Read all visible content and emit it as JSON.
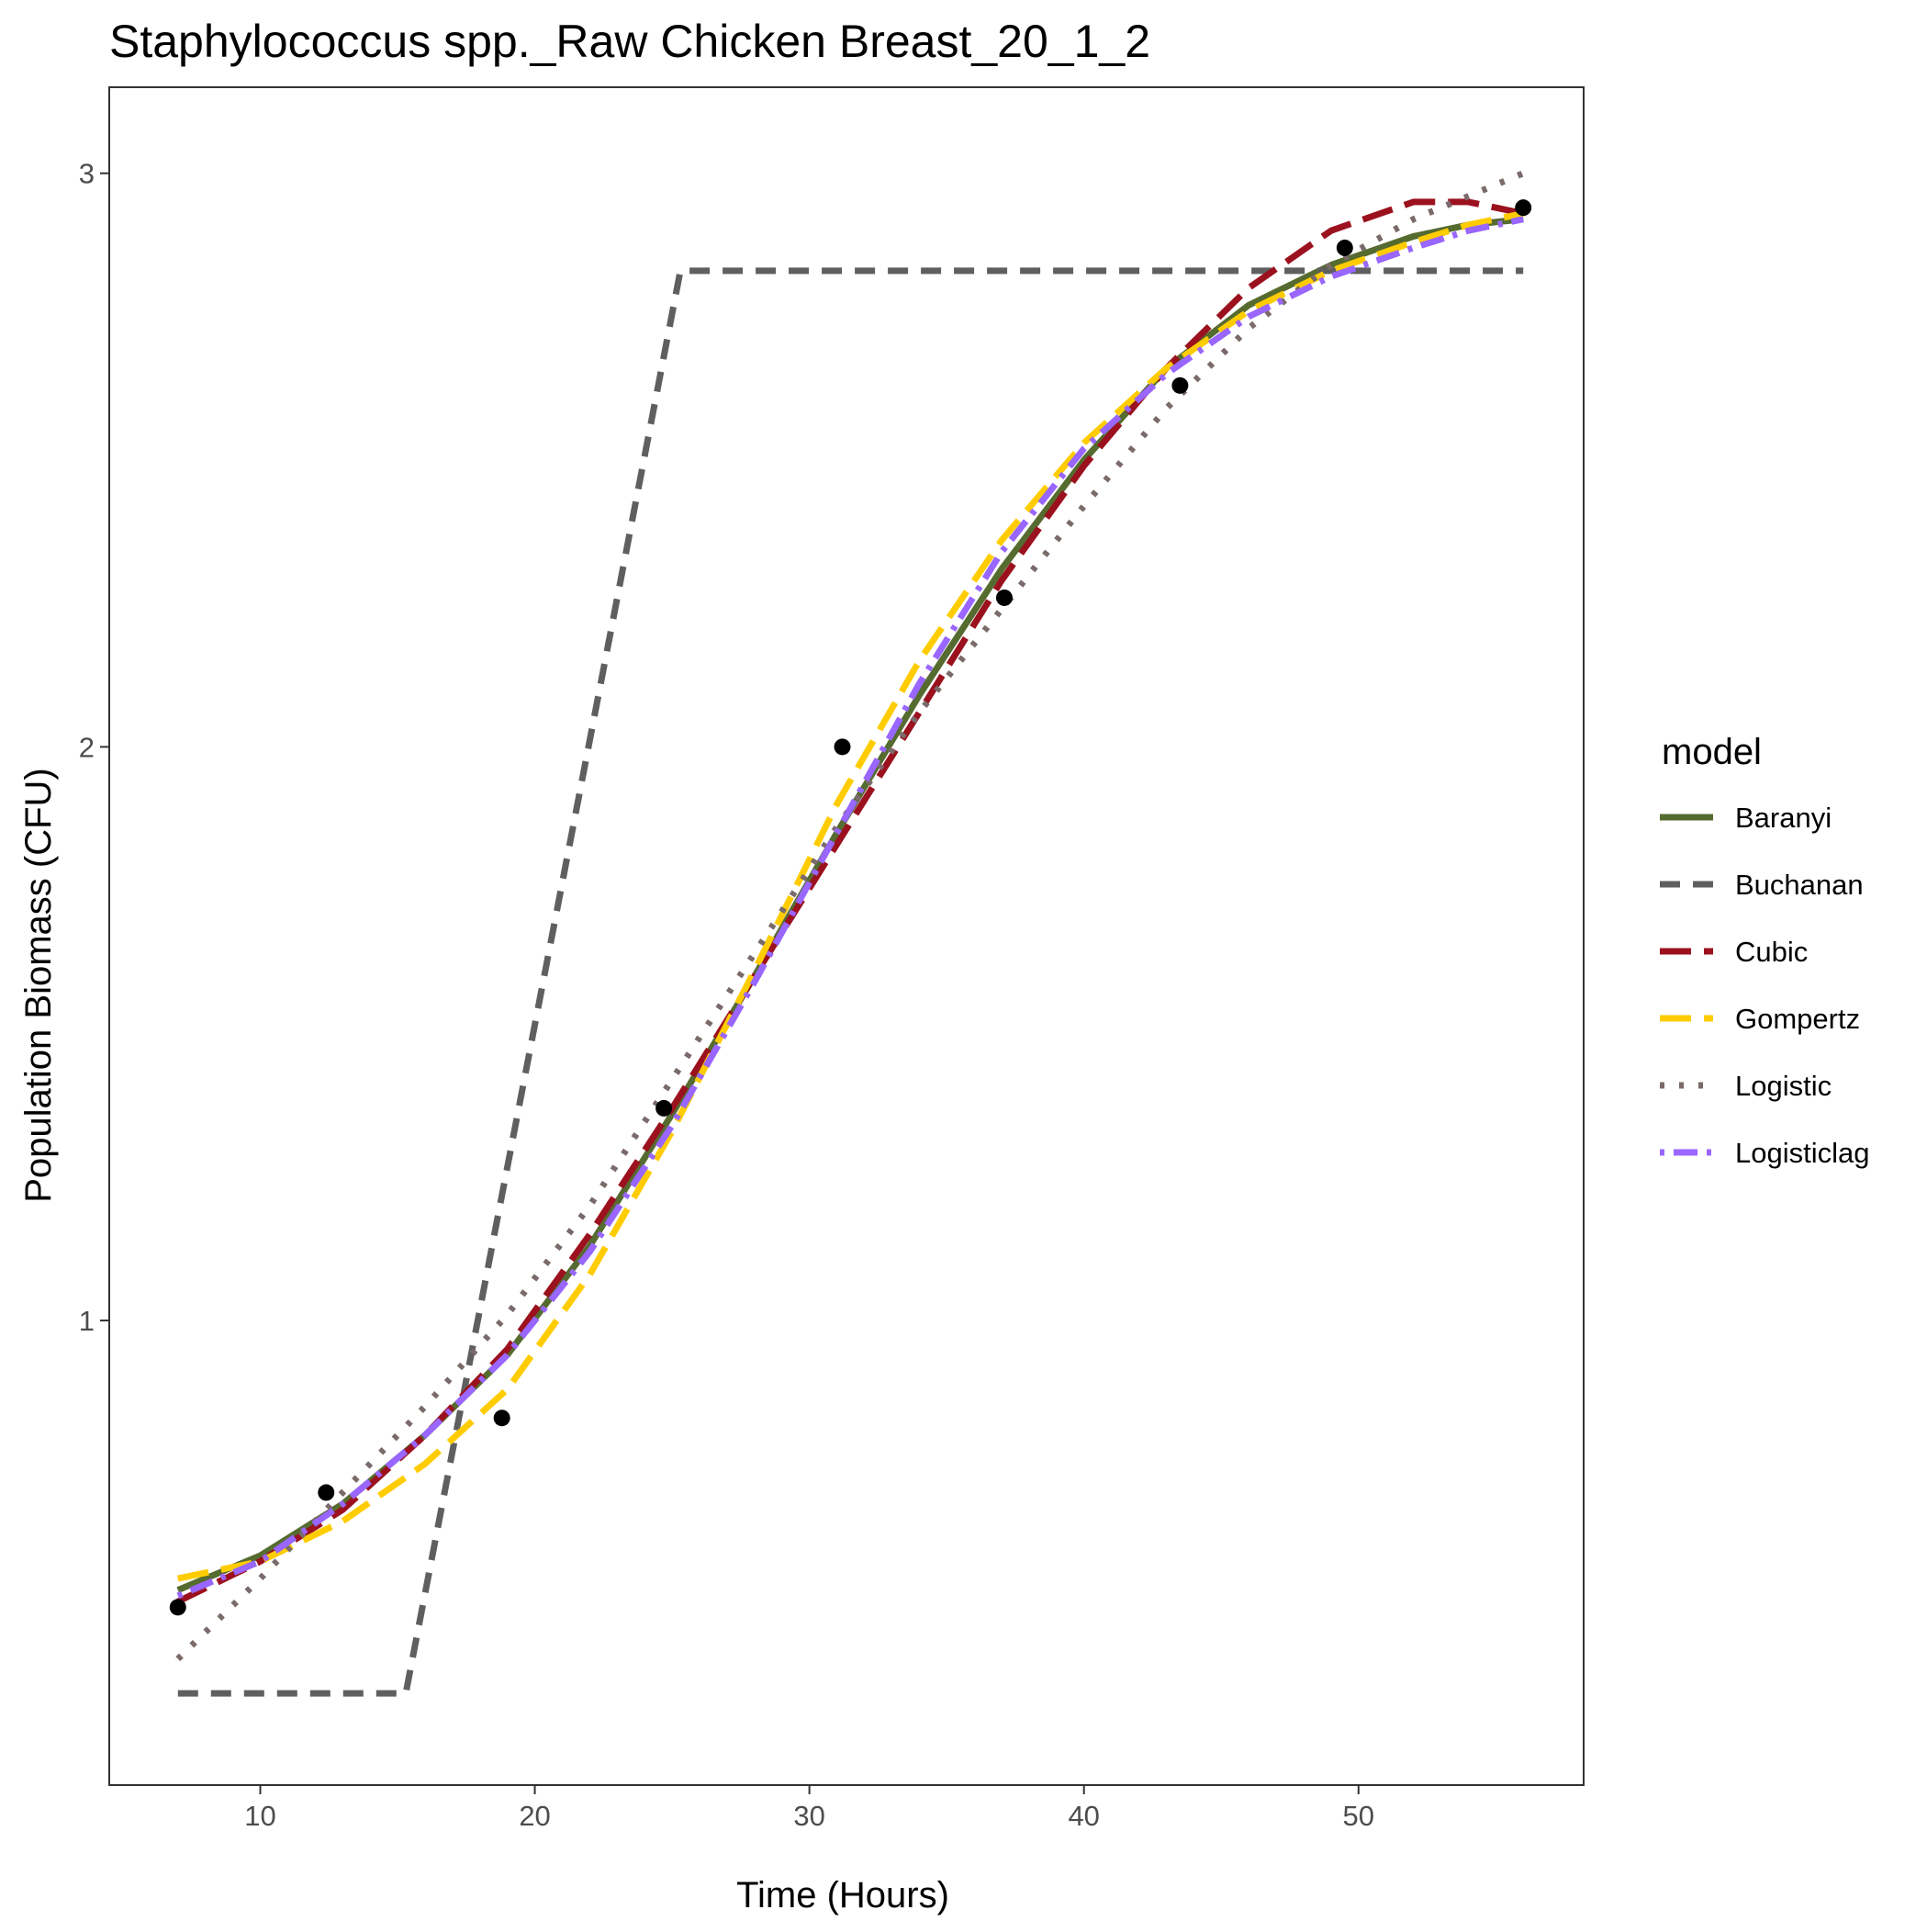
{
  "chart_data": {
    "type": "line",
    "title": "Staphylococcus spp._Raw Chicken Breast_20_1_2",
    "xlabel": "Time (Hours)",
    "ylabel": "Population Biomass (CFU)",
    "xlim": [
      4.5,
      58.2
    ],
    "ylim": [
      0.19,
      3.15
    ],
    "xticks": [
      10,
      20,
      30,
      40,
      50
    ],
    "yticks": [
      1,
      2,
      3
    ],
    "grid": false,
    "legend": {
      "title": "model",
      "position": "right"
    },
    "observed_points": {
      "x": [
        7,
        12.4,
        18.8,
        24.7,
        31.2,
        37.1,
        43.5,
        49.5,
        56
      ],
      "y": [
        0.5,
        0.7,
        0.83,
        1.37,
        2.0,
        2.26,
        2.63,
        2.87,
        2.94
      ]
    },
    "series": [
      {
        "name": "Baranyi",
        "color": "#556b2f",
        "dash": "solid",
        "x": [
          7,
          10,
          13,
          16,
          19,
          22,
          25,
          28,
          31,
          34,
          37,
          40,
          43,
          46,
          49,
          52,
          54,
          56
        ],
        "y": [
          0.53,
          0.59,
          0.68,
          0.8,
          0.94,
          1.13,
          1.36,
          1.6,
          1.85,
          2.09,
          2.31,
          2.5,
          2.66,
          2.77,
          2.84,
          2.89,
          2.91,
          2.92
        ]
      },
      {
        "name": "Buchanan",
        "color": "#5f5f5f",
        "dash": "dashed",
        "x": [
          7,
          15.3,
          25.3,
          56
        ],
        "y": [
          0.35,
          0.35,
          2.83,
          2.83
        ]
      },
      {
        "name": "Cubic",
        "color": "#9b111e",
        "dash": "longdash",
        "x": [
          7,
          10,
          13,
          16,
          19,
          22,
          25,
          28,
          31,
          34,
          37,
          40,
          43,
          46,
          49,
          52,
          54,
          56
        ],
        "y": [
          0.51,
          0.58,
          0.67,
          0.8,
          0.95,
          1.15,
          1.37,
          1.6,
          1.83,
          2.06,
          2.29,
          2.49,
          2.66,
          2.8,
          2.9,
          2.95,
          2.95,
          2.93
        ]
      },
      {
        "name": "Gompertz",
        "color": "#ffcc00",
        "dash": "longdash",
        "x": [
          7,
          10,
          13,
          16,
          19,
          22,
          25,
          28,
          31,
          34,
          37,
          40,
          43,
          46,
          49,
          52,
          54,
          56
        ],
        "y": [
          0.55,
          0.58,
          0.65,
          0.75,
          0.88,
          1.08,
          1.33,
          1.61,
          1.9,
          2.15,
          2.36,
          2.53,
          2.66,
          2.76,
          2.83,
          2.88,
          2.91,
          2.93
        ]
      },
      {
        "name": "Logistic",
        "color": "#7a6a6a",
        "dash": "dotted",
        "x": [
          7,
          10,
          13,
          16,
          19,
          22,
          25,
          28,
          31,
          34,
          37,
          40,
          43,
          46,
          49,
          52,
          54,
          56
        ],
        "y": [
          0.41,
          0.55,
          0.7,
          0.85,
          1.01,
          1.2,
          1.42,
          1.64,
          1.86,
          2.06,
          2.24,
          2.42,
          2.59,
          2.73,
          2.84,
          2.92,
          2.96,
          3.0
        ]
      },
      {
        "name": "Logisticlag",
        "color": "#9966ff",
        "dash": "dotdash",
        "x": [
          7,
          10,
          13,
          16,
          19,
          22,
          25,
          28,
          31,
          34,
          37,
          40,
          43,
          46,
          49,
          52,
          54,
          56
        ],
        "y": [
          0.52,
          0.58,
          0.68,
          0.8,
          0.94,
          1.12,
          1.34,
          1.59,
          1.85,
          2.11,
          2.34,
          2.52,
          2.65,
          2.75,
          2.82,
          2.87,
          2.9,
          2.92
        ]
      }
    ]
  }
}
